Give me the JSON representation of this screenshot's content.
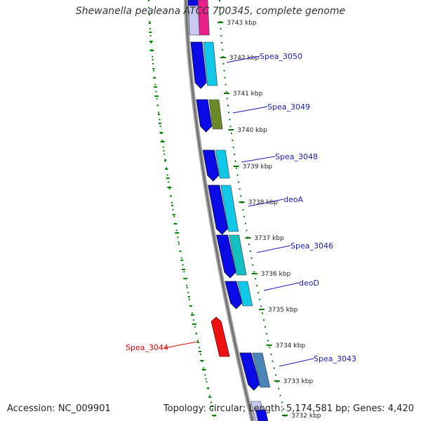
{
  "title": "Shewanella pealeana ATCC 700345, complete genome",
  "footer": {
    "accession": "Accession: NC_009901",
    "topology": "Topology: circular; Length: 5,174,581 bp; Genes: 4,420"
  },
  "colors": {
    "backbone": "#888888",
    "tick": "#007700",
    "gc_dots": "#008800",
    "label_blue": "#1a1ab0",
    "label_red": "#dd0000",
    "forward_strand": "#0a0ae6",
    "reverse_cyan": "#11c8e8",
    "reverse_olive": "#6a8a25",
    "reverse_teal": "#16c0c0",
    "reverse_steel": "#4a86b5",
    "pink": "#e8208a",
    "rna_red": "#ee1111",
    "lavender": "#c8c8f0"
  },
  "kbp_ticks": [
    "3743 kbp",
    "3742 kbp",
    "3741 kbp",
    "3740 kbp",
    "3739 kbp",
    "3738 kbp",
    "3737 kbp",
    "3736 kbp",
    "3735 kbp",
    "3734 kbp",
    "3733 kbp",
    "3732 kbp"
  ],
  "gene_labels": [
    "Spea_3050",
    "Spea_3049",
    "Spea_3048",
    "deoA",
    "Spea_3046",
    "deoD",
    "Spea_3044",
    "Spea_3043"
  ]
}
